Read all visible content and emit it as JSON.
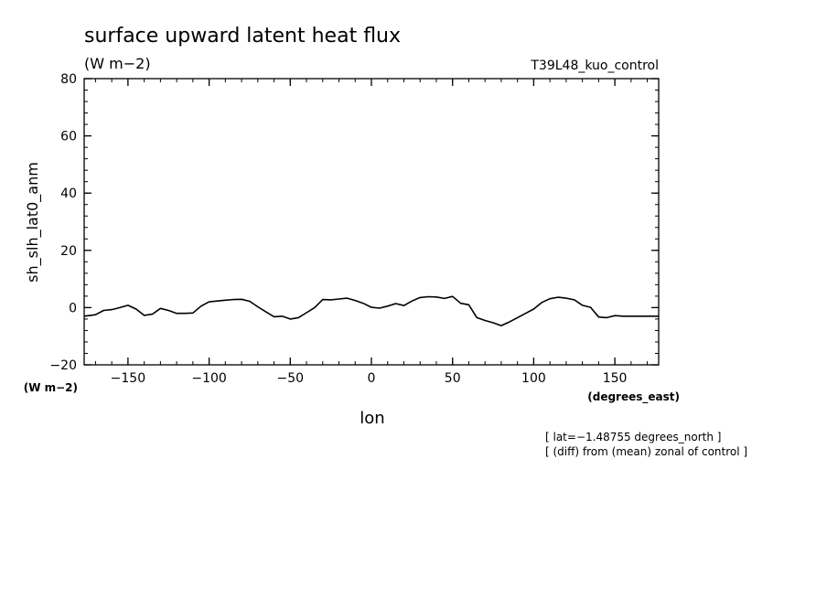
{
  "header": {
    "title": "surface upward latent heat flux",
    "units": "(W m−2)",
    "run_name": "T39L48_kuo_control"
  },
  "notes": {
    "line1": "[ lat=−1.48755 degrees_north ]",
    "line2": "[ (diff) from (mean) zonal of control ]"
  },
  "chart_data": {
    "type": "line",
    "title": "surface upward latent heat flux",
    "xlabel": "lon",
    "xunits": "(degrees_east)",
    "ylabel": "sh_slh_lat0_anm",
    "yunits": "(W m−2)",
    "xlim": [
      -177,
      177
    ],
    "ylim": [
      -20,
      80
    ],
    "xticks": [
      -150,
      -100,
      -50,
      0,
      50,
      100,
      150
    ],
    "xtick_labels": [
      "−150",
      "−100",
      "−50",
      "0",
      "50",
      "100",
      "150"
    ],
    "yticks": [
      -20,
      0,
      20,
      40,
      60,
      80
    ],
    "ytick_labels": [
      "−20",
      "0",
      "20",
      "40",
      "60",
      "80"
    ],
    "grid": false,
    "series": [
      {
        "color": "#000000",
        "x": [
          -177,
          -170,
          -165,
          -160,
          -155,
          -150,
          -145,
          -140,
          -135,
          -130,
          -125,
          -120,
          -115,
          -110,
          -105,
          -100,
          -95,
          -90,
          -85,
          -80,
          -75,
          -70,
          -65,
          -60,
          -55,
          -50,
          -45,
          -40,
          -35,
          -30,
          -25,
          -20,
          -15,
          -10,
          -5,
          0,
          5,
          10,
          15,
          20,
          25,
          30,
          35,
          40,
          45,
          50,
          55,
          60,
          65,
          70,
          75,
          80,
          85,
          90,
          95,
          100,
          105,
          110,
          115,
          120,
          125,
          130,
          135,
          140,
          145,
          150,
          155,
          160,
          165,
          170,
          175,
          177
        ],
        "y": [
          -3,
          -2.5,
          -1,
          -0.7,
          0,
          0.8,
          -0.5,
          -2.7,
          -2.3,
          -0.3,
          -1,
          -2,
          -2,
          -1.9,
          0.5,
          2.0,
          2.3,
          2.6,
          2.8,
          2.9,
          2.2,
          0.3,
          -1.5,
          -3.2,
          -3.0,
          -4.0,
          -3.5,
          -1.8,
          0,
          2.8,
          2.7,
          3.0,
          3.3,
          2.5,
          1.5,
          0.1,
          -0.2,
          0.5,
          1.4,
          0.7,
          2.3,
          3.5,
          3.8,
          3.7,
          3.2,
          3.9,
          1.5,
          1.0,
          -3.5,
          -4.5,
          -5.3,
          -6.3,
          -5.0,
          -3.5,
          -2.0,
          -0.5,
          1.8,
          3.1,
          3.6,
          3.3,
          2.7,
          0.8,
          0.1,
          -3.3,
          -3.5,
          -2.8,
          -3.0,
          -3.0,
          -3.0,
          -3.0,
          -3.0,
          -3.0
        ]
      }
    ]
  }
}
